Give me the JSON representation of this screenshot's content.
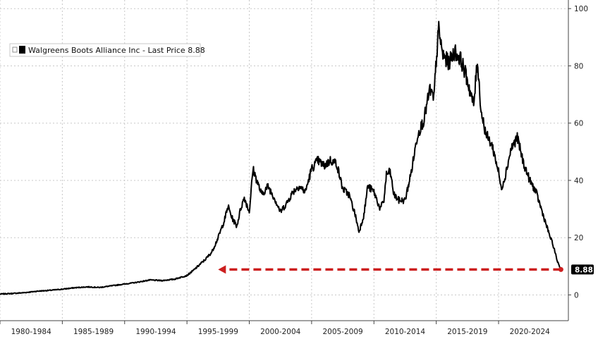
{
  "chart_data": {
    "type": "line",
    "legend": {
      "label": "Walgreens Boots Alliance Inc - Last Price 8.88",
      "placement": "top-left"
    },
    "last_value_label": "8.88",
    "colors": {
      "line": "#000000",
      "arrow": "#cc1f1f",
      "last_label_bg": "#000000",
      "grid": "#c8c8c8"
    },
    "grid": true,
    "y_axis": {
      "side": "right",
      "ylim": [
        -9,
        103
      ],
      "ticks": [
        0,
        20,
        40,
        60,
        80,
        100
      ]
    },
    "x_axis": {
      "xlim": [
        1980.0,
        2025.6
      ],
      "ticks": [
        1980,
        1985,
        1990,
        1995,
        2000,
        2005,
        2010,
        2015,
        2020
      ],
      "tick_labels": [
        "1980-1984",
        "1985-1989",
        "1990-1994",
        "1995-1999",
        "2000-2004",
        "2005-2009",
        "2010-2014",
        "2015-2019",
        "2020-2024"
      ]
    },
    "series": [
      {
        "name": "Walgreens Boots Alliance Inc",
        "x": [
          1980.0,
          1981.0,
          1982.0,
          1983.0,
          1984.0,
          1985.0,
          1986.0,
          1987.0,
          1988.0,
          1989.0,
          1990.0,
          1991.0,
          1992.0,
          1993.0,
          1994.0,
          1995.0,
          1995.5,
          1996.0,
          1996.5,
          1997.0,
          1997.5,
          1998.0,
          1998.3,
          1998.6,
          1999.0,
          1999.3,
          1999.6,
          2000.0,
          2000.3,
          2000.6,
          2001.0,
          2001.5,
          2002.0,
          2002.5,
          2003.0,
          2003.5,
          2004.0,
          2004.5,
          2005.0,
          2005.5,
          2006.0,
          2006.5,
          2007.0,
          2007.5,
          2008.0,
          2008.5,
          2008.8,
          2009.0,
          2009.2,
          2009.5,
          2010.0,
          2010.5,
          2010.8,
          2011.0,
          2011.3,
          2011.6,
          2012.0,
          2012.5,
          2013.0,
          2013.5,
          2014.0,
          2014.5,
          2014.8,
          2015.0,
          2015.2,
          2015.5,
          2016.0,
          2016.5,
          2017.0,
          2017.5,
          2018.0,
          2018.3,
          2018.6,
          2019.0,
          2019.5,
          2020.0,
          2020.2,
          2020.5,
          2021.0,
          2021.5,
          2022.0,
          2022.5,
          2023.0,
          2023.5,
          2024.0,
          2024.4,
          2024.7,
          2025.0
        ],
        "values": [
          0.3,
          0.5,
          0.8,
          1.3,
          1.6,
          2.0,
          2.5,
          2.8,
          2.6,
          3.2,
          3.8,
          4.4,
          5.2,
          5.0,
          5.5,
          6.8,
          8.5,
          10.5,
          12.5,
          15.0,
          20.0,
          26.0,
          31.0,
          27.0,
          24.0,
          30.0,
          34.0,
          29.0,
          44.0,
          40.0,
          35.0,
          38.0,
          34.0,
          29.0,
          32.0,
          36.0,
          38.0,
          36.0,
          44.0,
          47.0,
          45.0,
          47.0,
          46.0,
          37.0,
          35.0,
          28.0,
          22.0,
          25.0,
          28.0,
          38.0,
          36.0,
          30.0,
          33.0,
          42.0,
          43.0,
          35.0,
          33.0,
          33.0,
          43.0,
          56.0,
          61.0,
          72.0,
          68.0,
          82.0,
          93.0,
          84.0,
          81.0,
          85.0,
          82.0,
          75.0,
          66.0,
          82.0,
          64.0,
          56.0,
          52.0,
          43.0,
          37.0,
          41.0,
          51.0,
          55.0,
          46.0,
          40.0,
          36.0,
          29.0,
          22.0,
          17.0,
          12.0,
          8.88
        ]
      }
    ],
    "annotation": {
      "type": "dashed-arrow",
      "y": 8.88,
      "x_from": 2025.0,
      "x_to": 1997.5
    }
  }
}
